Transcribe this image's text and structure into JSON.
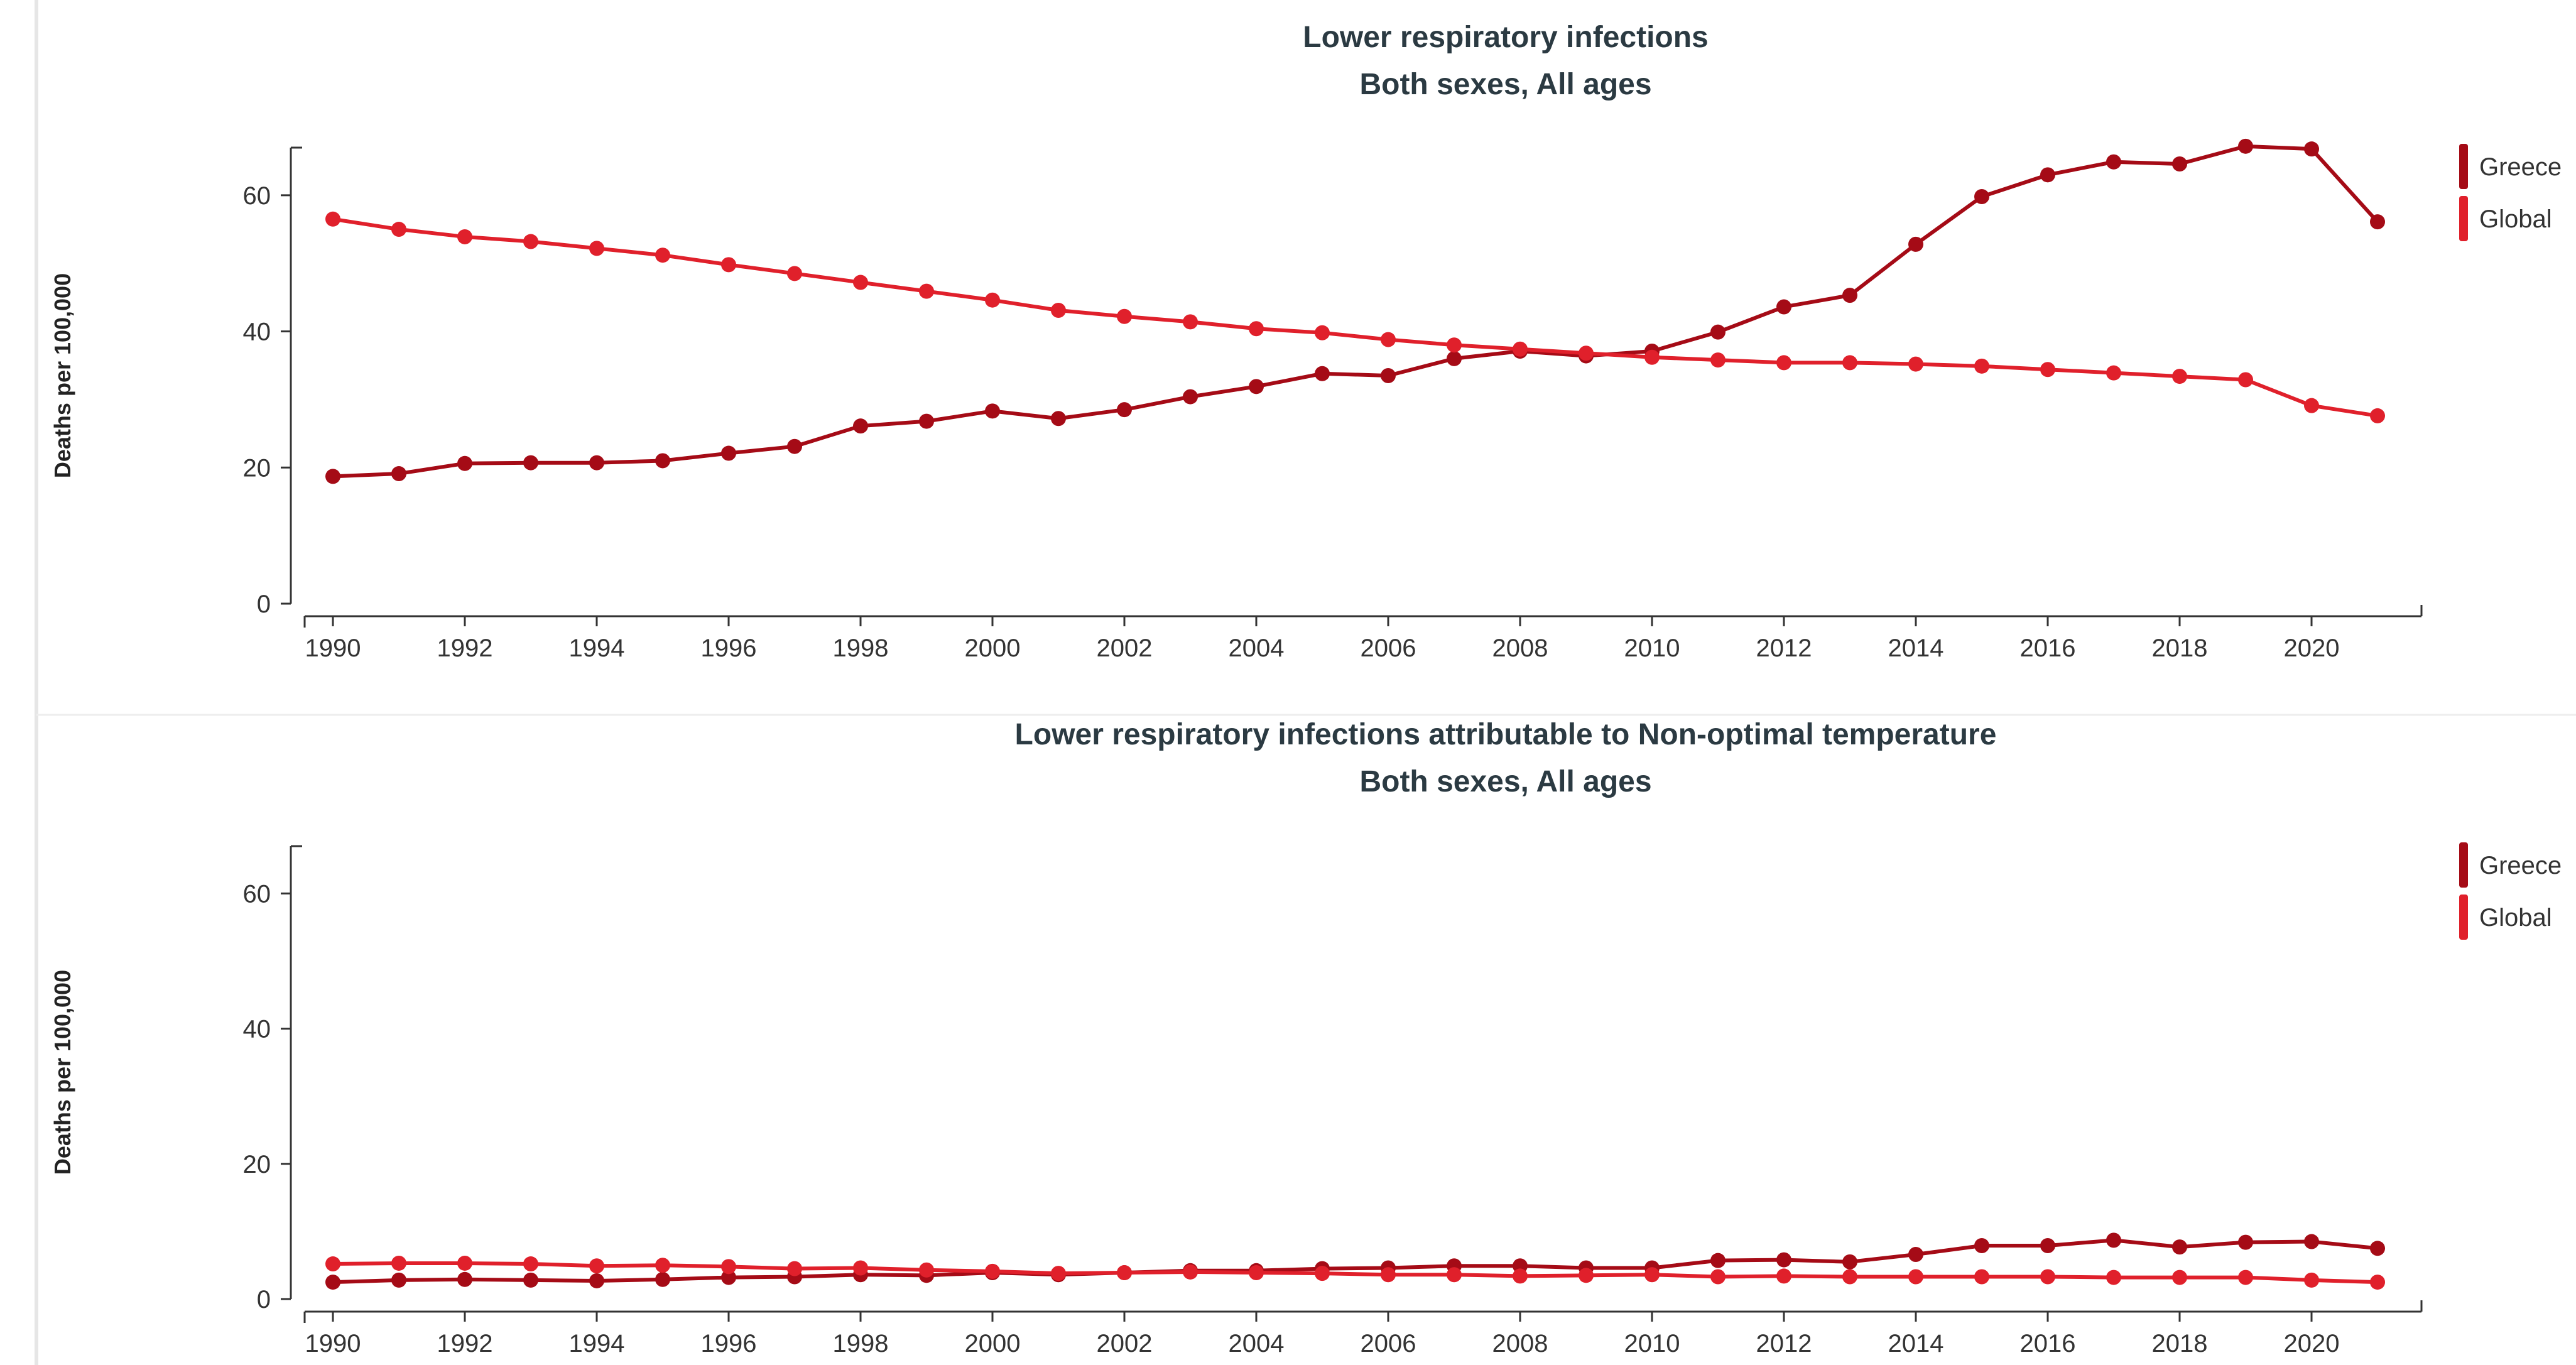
{
  "chart_data": [
    {
      "type": "line",
      "title": "Lower respiratory infections",
      "subtitle": "Both sexes, All ages",
      "xlabel": "",
      "ylabel": "Deaths per 100,000",
      "x": [
        1990,
        1991,
        1992,
        1993,
        1994,
        1995,
        1996,
        1997,
        1998,
        1999,
        2000,
        2001,
        2002,
        2003,
        2004,
        2005,
        2006,
        2007,
        2008,
        2009,
        2010,
        2011,
        2012,
        2013,
        2014,
        2015,
        2016,
        2017,
        2018,
        2019,
        2020,
        2021
      ],
      "x_ticks": [
        "1990",
        "1992",
        "1994",
        "1996",
        "1998",
        "2000",
        "2002",
        "2004",
        "2006",
        "2008",
        "2010",
        "2012",
        "2014",
        "2016",
        "2018",
        "2020"
      ],
      "y_ticks": [
        "0",
        "20",
        "40",
        "60"
      ],
      "ylim": [
        0,
        67
      ],
      "grid": false,
      "legend_position": "right",
      "series": [
        {
          "name": "Greece",
          "color": "#a50b16",
          "values": [
            18.7,
            19.1,
            20.6,
            20.7,
            20.7,
            21.0,
            22.1,
            23.1,
            26.1,
            26.8,
            28.3,
            27.2,
            28.5,
            30.4,
            31.9,
            33.8,
            33.5,
            36.0,
            37.1,
            36.4,
            37.1,
            39.9,
            43.6,
            45.3,
            52.8,
            59.8,
            63.0,
            64.9,
            64.6,
            67.2,
            66.8,
            56.1
          ]
        },
        {
          "name": "Global",
          "color": "#e0202b",
          "values": [
            56.5,
            55.0,
            53.9,
            53.2,
            52.2,
            51.2,
            49.8,
            48.5,
            47.2,
            45.9,
            44.6,
            43.1,
            42.2,
            41.4,
            40.4,
            39.8,
            38.8,
            38.0,
            37.4,
            36.8,
            36.2,
            35.8,
            35.4,
            35.4,
            35.2,
            34.9,
            34.4,
            33.9,
            33.4,
            32.9,
            29.1,
            27.6
          ]
        }
      ]
    },
    {
      "type": "line",
      "title": "Lower respiratory infections attributable to Non-optimal temperature",
      "subtitle": "Both sexes, All ages",
      "xlabel": "",
      "ylabel": "Deaths per 100,000",
      "x": [
        1990,
        1991,
        1992,
        1993,
        1994,
        1995,
        1996,
        1997,
        1998,
        1999,
        2000,
        2001,
        2002,
        2003,
        2004,
        2005,
        2006,
        2007,
        2008,
        2009,
        2010,
        2011,
        2012,
        2013,
        2014,
        2015,
        2016,
        2017,
        2018,
        2019,
        2020,
        2021
      ],
      "x_ticks": [
        "1990",
        "1992",
        "1994",
        "1996",
        "1998",
        "2000",
        "2002",
        "2004",
        "2006",
        "2008",
        "2010",
        "2012",
        "2014",
        "2016",
        "2018",
        "2020"
      ],
      "y_ticks": [
        "0",
        "20",
        "40",
        "60"
      ],
      "ylim": [
        0,
        67
      ],
      "grid": false,
      "legend_position": "right",
      "series": [
        {
          "name": "Greece",
          "color": "#a50b16",
          "values": [
            2.5,
            2.8,
            2.9,
            2.8,
            2.7,
            2.9,
            3.2,
            3.3,
            3.6,
            3.5,
            3.9,
            3.6,
            3.9,
            4.2,
            4.2,
            4.5,
            4.6,
            4.9,
            4.9,
            4.6,
            4.6,
            5.7,
            5.8,
            5.5,
            6.6,
            7.9,
            7.9,
            8.7,
            7.7,
            8.4,
            8.5,
            7.5
          ]
        },
        {
          "name": "Global",
          "color": "#e0202b",
          "values": [
            5.2,
            5.3,
            5.3,
            5.2,
            4.9,
            5.0,
            4.8,
            4.5,
            4.6,
            4.3,
            4.1,
            3.8,
            3.9,
            4.0,
            3.9,
            3.8,
            3.6,
            3.6,
            3.4,
            3.5,
            3.6,
            3.3,
            3.4,
            3.3,
            3.3,
            3.3,
            3.3,
            3.2,
            3.2,
            3.2,
            2.8,
            2.5
          ]
        }
      ]
    }
  ]
}
